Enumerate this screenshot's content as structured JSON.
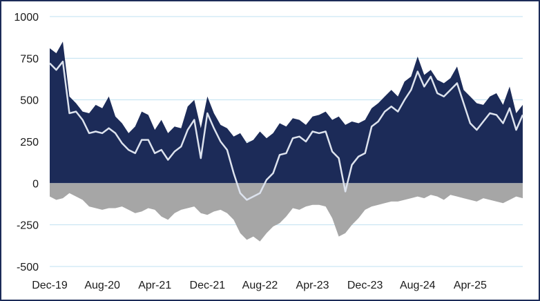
{
  "chart_data": {
    "type": "area",
    "title": "",
    "xlabel": "",
    "ylabel": "",
    "ylim": [
      -500,
      1000
    ],
    "yticks": [
      1000,
      750,
      500,
      250,
      0,
      -250,
      -500
    ],
    "ytick_labels": [
      "1000",
      "750",
      "500",
      "250",
      "0",
      "-250",
      "-500"
    ],
    "xlim": [
      "2019-12",
      "2025-12"
    ],
    "x_ticks": [
      {
        "x": "2019-12",
        "label": "Dec-19"
      },
      {
        "x": "2020-08",
        "label": "Aug-20"
      },
      {
        "x": "2021-04",
        "label": "Apr-21"
      },
      {
        "x": "2021-12",
        "label": "Dec-21"
      },
      {
        "x": "2022-08",
        "label": "Aug-22"
      },
      {
        "x": "2023-04",
        "label": "Apr-23"
      },
      {
        "x": "2023-12",
        "label": "Dec-23"
      },
      {
        "x": "2024-08",
        "label": "Aug-24"
      },
      {
        "x": "2025-04",
        "label": "Apr-25"
      }
    ],
    "grid": true,
    "legend": "none",
    "colors": {
      "positive": "#1c2b58",
      "negative": "#a6a6a6",
      "net": "#dde3ee",
      "grid": "#bfe0f0",
      "border": "#1c2b58"
    },
    "x": [
      "2019-12",
      "2020-01",
      "2020-02",
      "2020-03",
      "2020-04",
      "2020-05",
      "2020-06",
      "2020-07",
      "2020-08",
      "2020-09",
      "2020-10",
      "2020-11",
      "2020-12",
      "2021-01",
      "2021-02",
      "2021-03",
      "2021-04",
      "2021-05",
      "2021-06",
      "2021-07",
      "2021-08",
      "2021-09",
      "2021-10",
      "2021-11",
      "2021-12",
      "2022-01",
      "2022-02",
      "2022-03",
      "2022-04",
      "2022-05",
      "2022-06",
      "2022-07",
      "2022-08",
      "2022-09",
      "2022-10",
      "2022-11",
      "2022-12",
      "2023-01",
      "2023-02",
      "2023-03",
      "2023-04",
      "2023-05",
      "2023-06",
      "2023-07",
      "2023-08",
      "2023-09",
      "2023-10",
      "2023-11",
      "2023-12",
      "2024-01",
      "2024-02",
      "2024-03",
      "2024-04",
      "2024-05",
      "2024-06",
      "2024-07",
      "2024-08",
      "2024-09",
      "2024-10",
      "2024-11",
      "2024-12",
      "2025-01",
      "2025-02",
      "2025-03",
      "2025-04",
      "2025-05",
      "2025-06",
      "2025-07",
      "2025-08",
      "2025-09",
      "2025-10",
      "2025-11",
      "2025-12"
    ],
    "series": [
      {
        "values": [
          810,
          780,
          850,
          520,
          480,
          430,
          420,
          470,
          450,
          520,
          400,
          360,
          300,
          340,
          430,
          410,
          320,
          380,
          300,
          340,
          330,
          460,
          500,
          330,
          520,
          420,
          350,
          330,
          280,
          300,
          240,
          260,
          310,
          270,
          300,
          360,
          340,
          390,
          380,
          350,
          400,
          410,
          430,
          380,
          400,
          350,
          370,
          360,
          380,
          450,
          480,
          520,
          560,
          520,
          610,
          640,
          760,
          650,
          680,
          620,
          600,
          630,
          700,
          560,
          520,
          480,
          470,
          520,
          540,
          470,
          580,
          420,
          470
        ]
      },
      {
        "values": [
          -80,
          -100,
          -90,
          -60,
          -80,
          -100,
          -140,
          -150,
          -160,
          -150,
          -150,
          -140,
          -160,
          -180,
          -170,
          -150,
          -160,
          -200,
          -220,
          -180,
          -160,
          -150,
          -140,
          -180,
          -190,
          -170,
          -160,
          -180,
          -220,
          -300,
          -340,
          -320,
          -350,
          -300,
          -260,
          -240,
          -200,
          -150,
          -160,
          -140,
          -130,
          -130,
          -140,
          -210,
          -320,
          -300,
          -250,
          -210,
          -160,
          -140,
          -130,
          -120,
          -110,
          -110,
          -100,
          -90,
          -80,
          -90,
          -70,
          -80,
          -100,
          -70,
          -80,
          -90,
          -100,
          -110,
          -90,
          -100,
          -110,
          -120,
          -100,
          -80,
          -90
        ]
      },
      {
        "values": [
          720,
          680,
          730,
          420,
          430,
          380,
          300,
          310,
          300,
          330,
          300,
          240,
          200,
          180,
          260,
          260,
          180,
          200,
          140,
          190,
          220,
          320,
          380,
          150,
          420,
          330,
          250,
          200,
          60,
          -60,
          -100,
          -80,
          -60,
          20,
          60,
          170,
          180,
          270,
          280,
          250,
          310,
          300,
          310,
          190,
          150,
          -50,
          110,
          160,
          180,
          340,
          370,
          430,
          460,
          430,
          500,
          560,
          670,
          580,
          640,
          540,
          520,
          560,
          600,
          480,
          360,
          320,
          370,
          420,
          410,
          360,
          450,
          320,
          410
        ]
      }
    ]
  }
}
